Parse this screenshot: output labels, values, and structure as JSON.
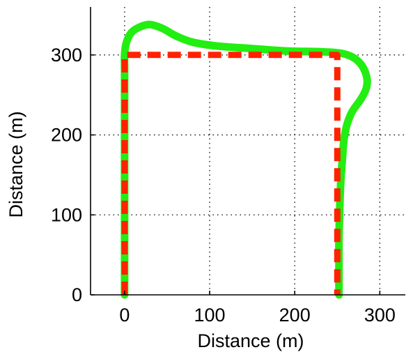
{
  "chart_data": {
    "type": "line",
    "title": "",
    "xlabel": "Distance (m)",
    "ylabel": "Distance (m)",
    "xlim": [
      -40,
      330
    ],
    "ylim": [
      0,
      360
    ],
    "xticks": [
      0,
      100,
      200,
      300
    ],
    "yticks": [
      0,
      100,
      200,
      300
    ],
    "xtick_labels": [
      "0",
      "100",
      "200",
      "300"
    ],
    "ytick_labels": [
      "0",
      "100",
      "200",
      "300"
    ],
    "grid": true,
    "legend": false,
    "series": [
      {
        "color": "#22ee11",
        "style": "solid",
        "x": [
          0,
          0,
          0,
          0,
          0,
          2,
          8,
          18,
          30,
          45,
          60,
          80,
          110,
          150,
          190,
          230,
          255,
          270,
          280,
          285,
          284,
          278,
          268,
          262,
          258,
          256,
          254,
          253,
          252,
          252,
          252
        ],
        "y": [
          0,
          100,
          200,
          280,
          300,
          315,
          328,
          335,
          338,
          333,
          324,
          316,
          311,
          308,
          305,
          304,
          302,
          296,
          285,
          270,
          258,
          245,
          230,
          215,
          195,
          170,
          140,
          110,
          70,
          30,
          0
        ]
      },
      {
        "color": "#ff2200",
        "style": "dashed",
        "x": [
          0,
          0,
          250,
          250
        ],
        "y": [
          0,
          300,
          300,
          0
        ]
      }
    ]
  }
}
